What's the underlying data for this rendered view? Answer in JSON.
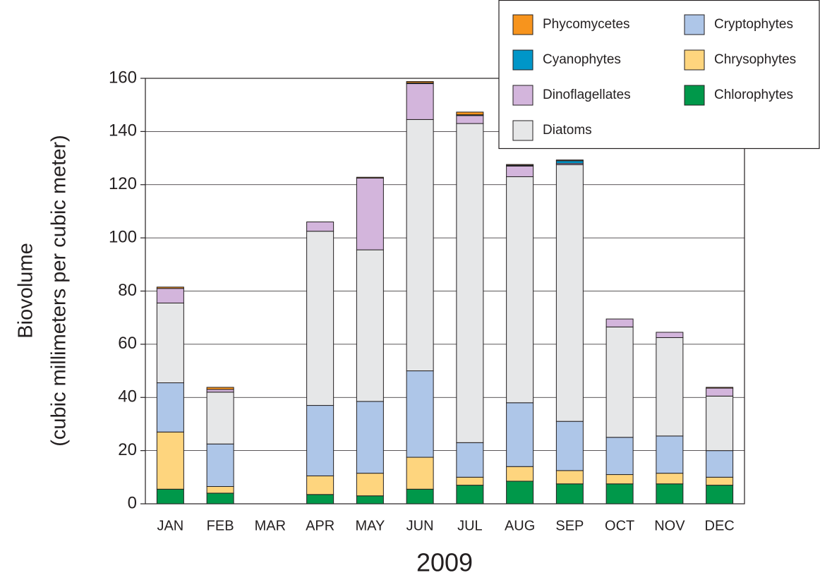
{
  "chart_data": {
    "type": "stacked_bar",
    "ylabel": [
      "Biovolume",
      "(cubic millimeters per cubic meter)"
    ],
    "xlabel": "2009",
    "categories": [
      "JAN",
      "FEB",
      "MAR",
      "APR",
      "MAY",
      "JUN",
      "JUL",
      "AUG",
      "SEP",
      "OCT",
      "NOV",
      "DEC"
    ],
    "series": [
      {
        "name": "Phycomycetes",
        "color": "#f7941d",
        "values": [
          0.5,
          0.8,
          null,
          0,
          0.3,
          0.5,
          1,
          0.3,
          0.3,
          0,
          0,
          0.3
        ]
      },
      {
        "name": "Cyanophytes",
        "color": "#0096c8",
        "values": [
          0,
          0,
          null,
          0,
          0,
          0.3,
          0.3,
          0.3,
          1,
          0,
          0,
          0
        ]
      },
      {
        "name": "Dinoflagellates",
        "color": "#d3b5dc",
        "values": [
          5.5,
          1,
          null,
          3.5,
          27,
          13.5,
          3,
          4,
          0.5,
          3,
          2,
          3
        ]
      },
      {
        "name": "Diatoms",
        "color": "#e6e7e8",
        "values": [
          30,
          19.5,
          null,
          65.5,
          57,
          94.5,
          120,
          85,
          96.5,
          41.5,
          37,
          20.5
        ]
      },
      {
        "name": "Cryptophytes",
        "color": "#aec6e8",
        "values": [
          18.5,
          16,
          null,
          26.5,
          27,
          32.5,
          13,
          24,
          18.5,
          14,
          14,
          10
        ]
      },
      {
        "name": "Chrysophytes",
        "color": "#fed57e",
        "values": [
          21.5,
          2.5,
          null,
          7,
          8.5,
          12,
          3,
          5.5,
          5,
          3.5,
          4,
          3
        ]
      },
      {
        "name": "Chlorophytes",
        "color": "#00984a",
        "values": [
          5.5,
          4,
          null,
          3.5,
          3,
          5.5,
          7,
          8.5,
          7.5,
          7.5,
          7.5,
          7
        ]
      }
    ],
    "ylim": [
      0,
      160
    ],
    "yticks": [
      0,
      20,
      40,
      60,
      80,
      100,
      120,
      140,
      160
    ],
    "grid": true,
    "legend": "top-right"
  }
}
